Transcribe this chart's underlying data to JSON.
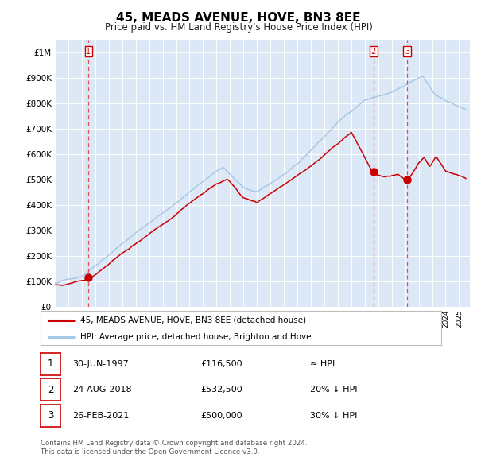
{
  "title": "45, MEADS AVENUE, HOVE, BN3 8EE",
  "subtitle": "Price paid vs. HM Land Registry's House Price Index (HPI)",
  "legend_line1": "45, MEADS AVENUE, HOVE, BN3 8EE (detached house)",
  "legend_line2": "HPI: Average price, detached house, Brighton and Hove",
  "footer1": "Contains HM Land Registry data © Crown copyright and database right 2024.",
  "footer2": "This data is licensed under the Open Government Licence v3.0.",
  "transactions": [
    {
      "num": 1,
      "date": "30-JUN-1997",
      "price": 116500,
      "year": 1997.5,
      "label": "≈ HPI"
    },
    {
      "num": 2,
      "date": "24-AUG-2018",
      "price": 532500,
      "year": 2018.65,
      "label": "20% ↓ HPI"
    },
    {
      "num": 3,
      "date": "26-FEB-2021",
      "price": 500000,
      "year": 2021.15,
      "label": "30% ↓ HPI"
    }
  ],
  "hpi_color": "#a8c8e8",
  "price_color": "#cc0000",
  "dot_color": "#cc0000",
  "vline_color": "#e05050",
  "plot_bg_color": "#dce8f5",
  "grid_color": "#ffffff",
  "border_color": "#bbbbbb",
  "ylim": [
    0,
    1050000
  ],
  "xlim_start": 1995.0,
  "xlim_end": 2025.8
}
